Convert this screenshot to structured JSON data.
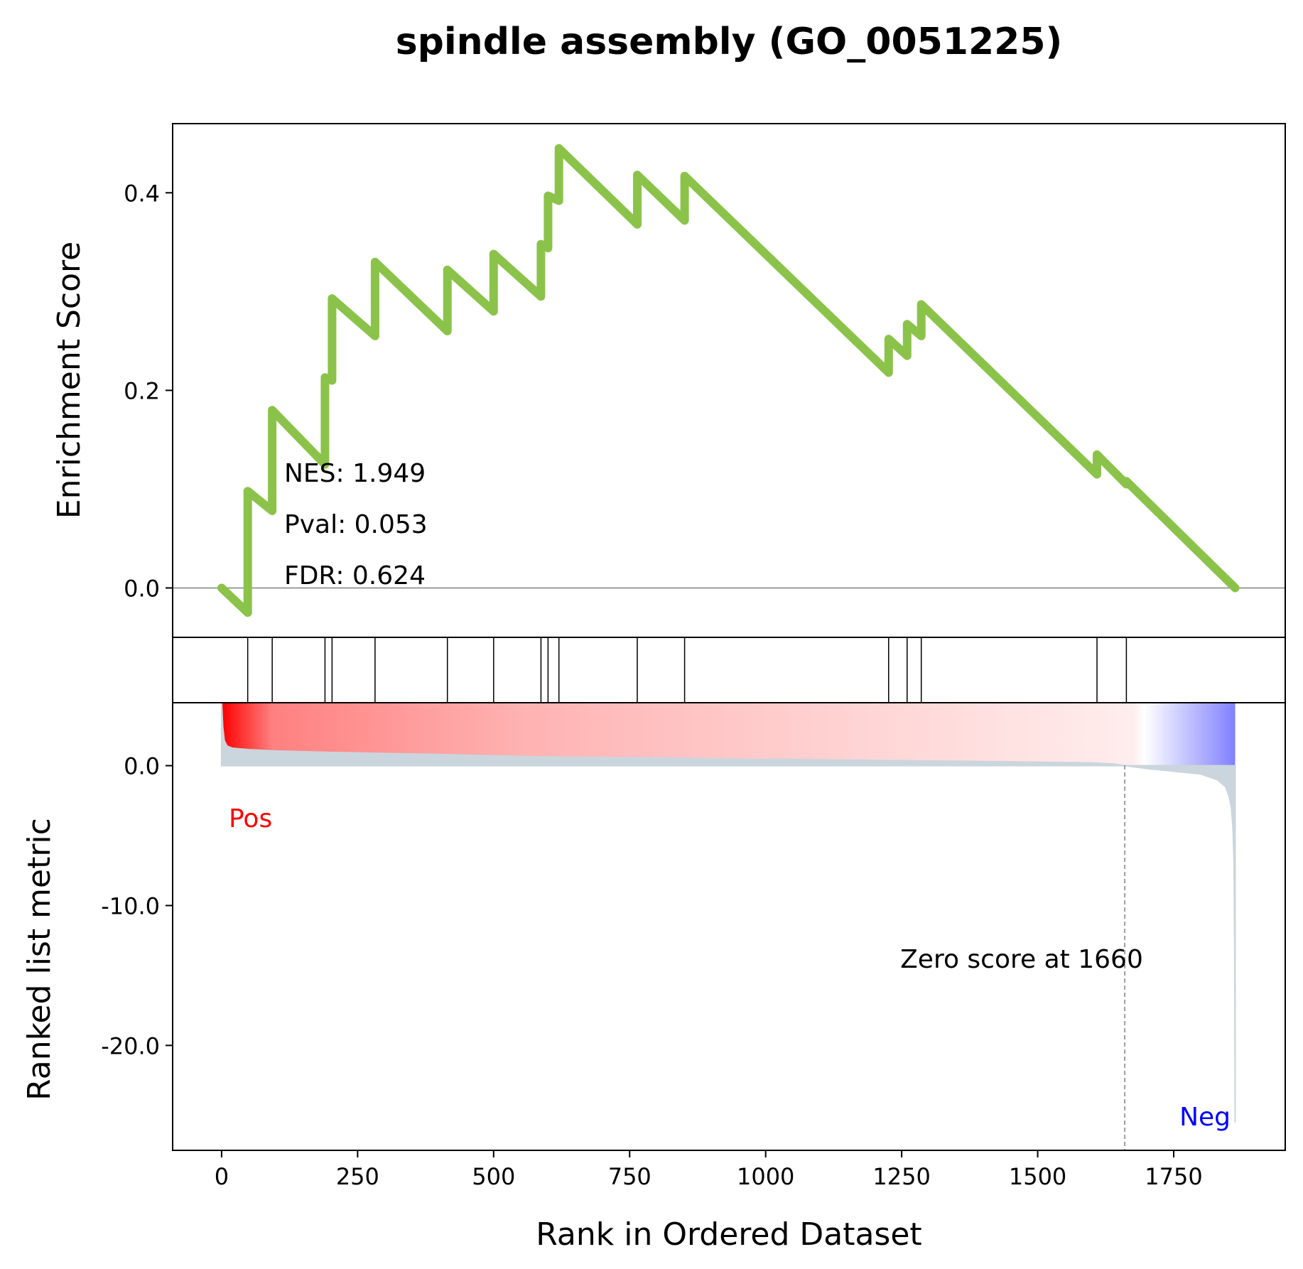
{
  "chart_data": {
    "type": "line",
    "title": "spindle assembly (GO_0051225)",
    "xlabel": "Rank in Ordered Dataset",
    "xlim": [
      -90,
      1955
    ],
    "xticks": [
      0,
      250,
      500,
      750,
      1000,
      1250,
      1500,
      1750
    ],
    "xtick_labels": [
      "0",
      "250",
      "500",
      "750",
      "1000",
      "1250",
      "1500",
      "1750"
    ],
    "es_panel": {
      "ylabel": "Enrichment Score",
      "ylim": [
        -0.05,
        0.47
      ],
      "yticks": [
        0.0,
        0.2,
        0.4
      ],
      "ytick_labels": [
        "0.0",
        "0.2",
        "0.4"
      ],
      "line_color": "#8bc34a",
      "zero_line_color": "#808080",
      "running_es": {
        "x": [
          0,
          48,
          48,
          93,
          93,
          190,
          190,
          203,
          203,
          282,
          282,
          415,
          415,
          500,
          500,
          587,
          587,
          600,
          600,
          620,
          620,
          764,
          764,
          851,
          851,
          1226,
          1226,
          1260,
          1260,
          1286,
          1286,
          1609,
          1609,
          1663,
          1663,
          1863
        ],
        "y": [
          0.0,
          -0.025,
          0.098,
          0.078,
          0.18,
          0.125,
          0.213,
          0.21,
          0.293,
          0.255,
          0.33,
          0.26,
          0.322,
          0.28,
          0.338,
          0.295,
          0.348,
          0.344,
          0.397,
          0.392,
          0.445,
          0.368,
          0.418,
          0.372,
          0.417,
          0.218,
          0.252,
          0.235,
          0.267,
          0.255,
          0.287,
          0.115,
          0.135,
          0.105,
          0.108,
          0.0
        ]
      },
      "stats": [
        {
          "label": "NES: 1.949"
        },
        {
          "label": "Pval: 0.053"
        },
        {
          "label": "FDR: 0.624"
        }
      ]
    },
    "hits_panel": {
      "hit_positions": [
        48,
        93,
        190,
        203,
        282,
        415,
        500,
        587,
        600,
        620,
        764,
        851,
        1226,
        1260,
        1286,
        1609,
        1663
      ]
    },
    "metric_panel": {
      "ylabel": "Ranked list metric",
      "ylim": [
        -27.5,
        4.5
      ],
      "yticks": [
        0.0,
        -10.0,
        -20.0
      ],
      "ytick_labels": [
        "0.0",
        "-10.0",
        "-20.0"
      ],
      "fill_color": "#cbd5de",
      "metric_curve": {
        "x": [
          0,
          2,
          5,
          10,
          20,
          50,
          100,
          200,
          400,
          600,
          800,
          1000,
          1200,
          1400,
          1600,
          1640,
          1660,
          1700,
          1750,
          1800,
          1830,
          1845,
          1852,
          1856,
          1859,
          1861,
          1862,
          1863
        ],
        "y": [
          4.6,
          2.8,
          1.8,
          1.4,
          1.25,
          1.15,
          1.05,
          0.95,
          0.8,
          0.62,
          0.55,
          0.45,
          0.38,
          0.3,
          0.2,
          0.12,
          0.0,
          -0.2,
          -0.4,
          -0.6,
          -1.0,
          -1.5,
          -2.2,
          -3.0,
          -4.5,
          -7.0,
          -13.0,
          -25.5
        ]
      },
      "zero_score_rank": 1660,
      "zero_score_label": "Zero score at 1660",
      "pos_label": "Pos",
      "neg_label": "Neg",
      "pos_color": "#ff0000",
      "neg_color": "#0000ff",
      "gradient_bar": {
        "x_range": [
          0,
          1863
        ],
        "colors": [
          "#ff0000",
          "#ff8080",
          "#ffb3b3",
          "#ffd6d6",
          "#ffeded",
          "#ffffff",
          "#8080ff"
        ],
        "stops": [
          0,
          0.05,
          0.3,
          0.65,
          0.9,
          0.91,
          1
        ]
      }
    }
  }
}
